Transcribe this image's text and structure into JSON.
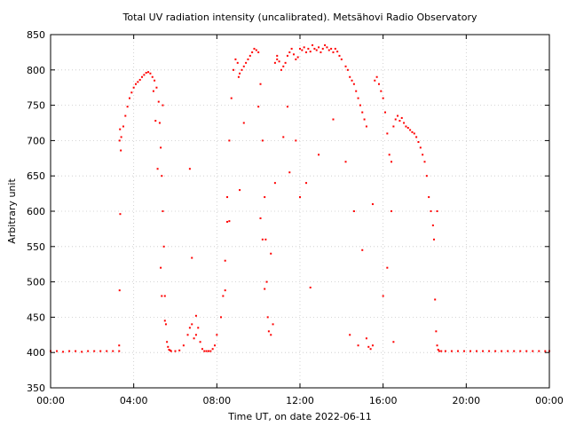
{
  "chart_data": {
    "type": "scatter",
    "title": "Total UV radiation intensity (uncalibrated). Metsähovi Radio Observatory",
    "xlabel": "Time UT, on date 2022-06-11",
    "ylabel": "Arbitrary unit",
    "xlim": [
      0,
      24
    ],
    "ylim": [
      350,
      850
    ],
    "x_ticks": [
      0,
      4,
      8,
      12,
      16,
      20,
      24
    ],
    "x_tick_labels": [
      "00:00",
      "04:00",
      "08:00",
      "12:00",
      "16:00",
      "20:00",
      "00:00"
    ],
    "y_ticks": [
      350,
      400,
      450,
      500,
      550,
      600,
      650,
      700,
      750,
      800,
      850
    ],
    "grid": true,
    "marker_color": "#ff0000",
    "series": [
      {
        "x": [
          0.0,
          0.3,
          0.6,
          0.9,
          1.2,
          1.5,
          1.8,
          2.1,
          2.4,
          2.7,
          3.0,
          3.3,
          3.3,
          3.32,
          3.35,
          3.38,
          3.4,
          3.5,
          3.6,
          3.7,
          3.8,
          3.9,
          4.0,
          4.1,
          4.2,
          4.3,
          4.4,
          4.5,
          4.6,
          4.7,
          4.8,
          4.9,
          5.0,
          5.1,
          5.2,
          5.25,
          5.3,
          5.35,
          5.4,
          5.45,
          5.5,
          5.55,
          5.6,
          5.65,
          5.7,
          5.75,
          5.8,
          6.0,
          6.2,
          6.4,
          6.6,
          6.7,
          6.8,
          6.9,
          7.0,
          7.1,
          7.2,
          7.3,
          7.4,
          7.5,
          7.6,
          7.7,
          7.8,
          7.9,
          8.0,
          8.2,
          8.3,
          8.4,
          8.5,
          8.6,
          8.7,
          8.8,
          8.9,
          9.0,
          9.05,
          9.1,
          9.2,
          9.3,
          9.4,
          9.5,
          9.6,
          9.7,
          9.8,
          9.9,
          10.0,
          10.1,
          10.2,
          10.3,
          10.35,
          10.4,
          10.45,
          10.5,
          10.6,
          10.7,
          10.8,
          10.9,
          11.0,
          11.1,
          11.2,
          11.3,
          11.4,
          11.5,
          11.6,
          11.7,
          11.8,
          11.9,
          12.0,
          12.1,
          12.2,
          12.3,
          12.4,
          12.5,
          12.6,
          12.7,
          12.8,
          12.9,
          13.0,
          13.1,
          13.2,
          13.3,
          13.4,
          13.5,
          13.6,
          13.7,
          13.8,
          13.9,
          14.0,
          14.2,
          14.3,
          14.4,
          14.5,
          14.6,
          14.7,
          14.8,
          14.9,
          15.0,
          15.1,
          15.2,
          15.3,
          15.4,
          15.5,
          15.6,
          15.7,
          15.8,
          15.9,
          16.0,
          16.1,
          16.2,
          16.3,
          16.4,
          16.5,
          16.6,
          16.7,
          16.8,
          16.9,
          17.0,
          17.1,
          17.2,
          17.3,
          17.4,
          17.5,
          17.6,
          17.7,
          17.8,
          17.9,
          18.0,
          18.1,
          18.2,
          18.3,
          18.4,
          18.45,
          18.5,
          18.55,
          18.6,
          18.65,
          18.7,
          18.8,
          19.0,
          19.3,
          19.6,
          19.9,
          20.2,
          20.5,
          20.8,
          21.1,
          21.4,
          21.7,
          22.0,
          22.3,
          22.6,
          22.9,
          23.2,
          23.5,
          23.8,
          24.0,
          4.95,
          5.05,
          5.15,
          5.3,
          5.35,
          5.4,
          5.5,
          6.7,
          6.8,
          7.0,
          8.4,
          8.5,
          8.6,
          9.1,
          9.3,
          10.0,
          10.1,
          10.2,
          10.3,
          10.6,
          10.8,
          10.9,
          11.2,
          11.4,
          11.5,
          11.8,
          12.0,
          12.3,
          12.5,
          12.9,
          13.6,
          14.2,
          14.4,
          14.6,
          14.8,
          15.0,
          15.2,
          15.5,
          16.0,
          16.2,
          16.4,
          16.5,
          3.32,
          3.34,
          18.6
        ],
        "y": [
          402,
          402,
          401,
          402,
          402,
          401,
          402,
          402,
          402,
          402,
          402,
          402,
          410,
          488,
          596,
          686,
          705,
          720,
          735,
          748,
          760,
          768,
          775,
          780,
          783,
          786,
          790,
          793,
          796,
          797,
          795,
          790,
          785,
          775,
          755,
          725,
          690,
          650,
          600,
          550,
          480,
          440,
          415,
          408,
          404,
          403,
          402,
          402,
          403,
          410,
          425,
          435,
          440,
          420,
          425,
          435,
          415,
          405,
          402,
          402,
          402,
          402,
          405,
          410,
          425,
          450,
          480,
          530,
          620,
          700,
          760,
          800,
          815,
          810,
          790,
          795,
          800,
          805,
          810,
          815,
          820,
          825,
          830,
          828,
          825,
          780,
          700,
          620,
          560,
          500,
          450,
          430,
          425,
          440,
          810,
          815,
          812,
          800,
          805,
          810,
          820,
          825,
          830,
          822,
          815,
          818,
          830,
          828,
          832,
          825,
          830,
          826,
          835,
          830,
          828,
          832,
          825,
          830,
          835,
          832,
          828,
          830,
          825,
          830,
          826,
          820,
          815,
          805,
          800,
          790,
          785,
          780,
          770,
          760,
          750,
          740,
          730,
          720,
          408,
          405,
          410,
          785,
          790,
          780,
          770,
          760,
          740,
          710,
          680,
          600,
          720,
          730,
          735,
          728,
          732,
          725,
          720,
          718,
          715,
          712,
          710,
          705,
          698,
          690,
          680,
          670,
          650,
          620,
          600,
          580,
          560,
          475,
          430,
          410,
          404,
          402,
          402,
          402,
          402,
          402,
          402,
          402,
          402,
          402,
          402,
          402,
          402,
          402,
          402,
          402,
          402,
          402,
          402,
          402,
          402,
          770,
          728,
          660,
          520,
          480,
          750,
          445,
          660,
          534,
          452,
          488,
          585,
          586,
          630,
          725,
          748,
          590,
          560,
          490,
          540,
          640,
          820,
          705,
          748,
          655,
          700,
          620,
          640,
          492,
          680,
          730,
          670,
          425,
          600,
          410,
          545,
          420,
          610,
          480,
          520,
          670,
          415,
          700,
          716,
          600
        ]
      }
    ]
  }
}
